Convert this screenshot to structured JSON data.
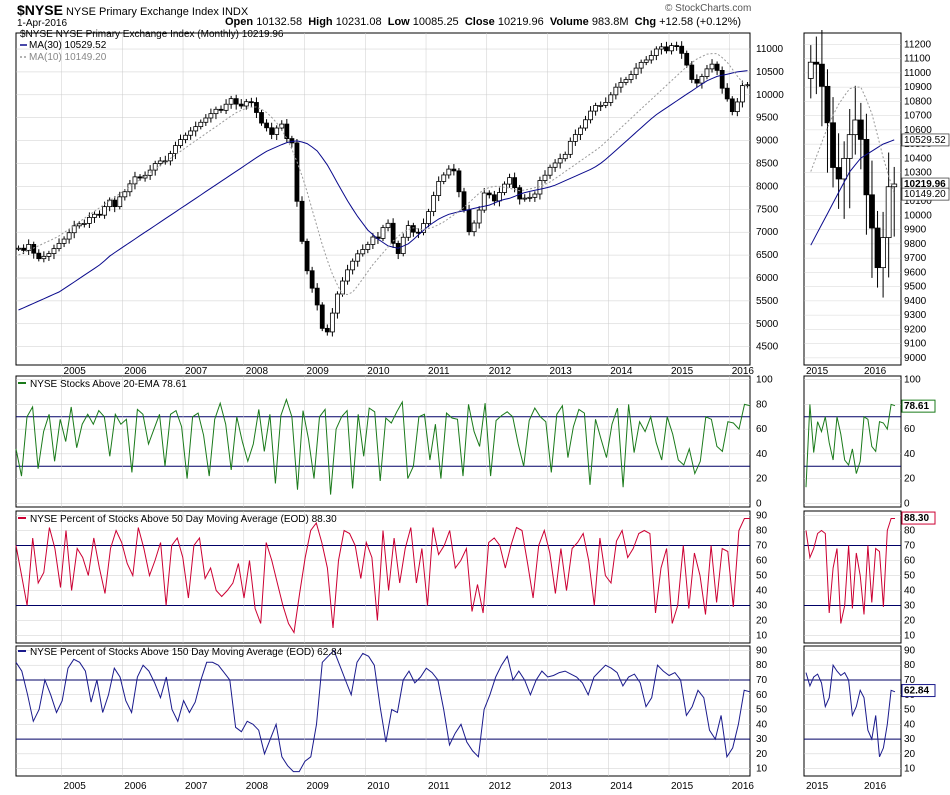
{
  "header": {
    "symbol": "$NYSE",
    "name": "NYSE Primary Exchange Index",
    "exchange": "INDX",
    "date": "1-Apr-2016",
    "open_label": "Open",
    "open": "10132.58",
    "high_label": "High",
    "high": "10231.08",
    "low_label": "Low",
    "low": "10085.25",
    "close_label": "Close",
    "close": "10219.96",
    "volume_label": "Volume",
    "volume": "983.8M",
    "chg_label": "Chg",
    "chg": "+12.58 (+0.12%)",
    "watermark": "© StockCharts.com"
  },
  "colors": {
    "price": "#000000",
    "ma30": "#0a0a8c",
    "ma10": "#9a9a9a",
    "ind1": "#1a7a1a",
    "ind2": "#cc0033",
    "ind3": "#1a1a8c",
    "grid": "#cccccc",
    "ref": "#000066"
  },
  "chart_data": [
    {
      "type": "candlestick",
      "title": "NYSE Primary Exchange Index (Monthly) 10219.96",
      "legend": [
        {
          "name": "MA(30)",
          "value": "10529.52",
          "label": "MA(30) 10529.52"
        },
        {
          "name": "MA(10)",
          "value": "10149.20",
          "label": "MA(10) 10149.20"
        }
      ],
      "start_year": 2004.25,
      "years": [
        "2005",
        "2006",
        "2007",
        "2008",
        "2009",
        "2010",
        "2011",
        "2012",
        "2013",
        "2014",
        "2015",
        "2016"
      ],
      "y_ticks": [
        4500,
        5000,
        5500,
        6000,
        6500,
        7000,
        7500,
        8000,
        8500,
        9000,
        9500,
        10000,
        10500,
        11000
      ],
      "ylim": [
        4100,
        11350
      ],
      "close_path": [
        6650,
        6600,
        6750,
        6500,
        6400,
        6500,
        6550,
        6700,
        6800,
        6900,
        7100,
        7200,
        7150,
        7300,
        7400,
        7350,
        7550,
        7700,
        7550,
        7800,
        7900,
        8100,
        8250,
        8150,
        8300,
        8400,
        8600,
        8500,
        8650,
        8850,
        9000,
        9100,
        9200,
        9300,
        9400,
        9500,
        9600,
        9700,
        9650,
        9850,
        9950,
        9700,
        9800,
        9900,
        9750,
        9400,
        9350,
        9100,
        9250,
        9400,
        9050,
        8950,
        7600,
        6700,
        6050,
        5700,
        5300,
        4700,
        4900,
        5500,
        5800,
        6100,
        6300,
        6500,
        6600,
        6700,
        6900,
        6850,
        7100,
        7200,
        6700,
        6500,
        7000,
        7200,
        6900,
        7050,
        7300,
        7600,
        8050,
        8200,
        8350,
        8450,
        7950,
        7550,
        7000,
        7200,
        7500,
        7900,
        7800,
        7650,
        7950,
        8100,
        8250,
        7750,
        7700,
        7800,
        7700,
        8100,
        8200,
        8400,
        8500,
        8600,
        8700,
        9000,
        9150,
        9300,
        9500,
        9700,
        9800,
        9750,
        9900,
        10100,
        10250,
        10300,
        10400,
        10550,
        10700,
        10750,
        10850,
        11000,
        11050,
        10950,
        11100,
        11050,
        10850,
        10550,
        10200,
        10300,
        10500,
        10650,
        10700,
        10200,
        10000,
        9600,
        9800,
        10200,
        10220
      ],
      "ma30_path": [
        5300,
        5400,
        5500,
        5600,
        5700,
        5850,
        6000,
        6150,
        6300,
        6500,
        6650,
        6800,
        6950,
        7100,
        7250,
        7400,
        7550,
        7700,
        7850,
        8000,
        8150,
        8300,
        8450,
        8600,
        8750,
        8850,
        8950,
        9000,
        8950,
        8800,
        8500,
        8100,
        7700,
        7350,
        7050,
        6850,
        6700,
        6650,
        6750,
        6950,
        7150,
        7300,
        7400,
        7450,
        7500,
        7550,
        7600,
        7700,
        7750,
        7850,
        7900,
        7950,
        8000,
        8100,
        8200,
        8300,
        8400,
        8550,
        8750,
        8950,
        9150,
        9350,
        9550,
        9700,
        9850,
        10000,
        10150,
        10300,
        10400,
        10450,
        10500,
        10530
      ],
      "ma10_path": [
        6500,
        6600,
        6700,
        6800,
        6900,
        7050,
        7200,
        7350,
        7500,
        7650,
        7800,
        7950,
        8100,
        8250,
        8400,
        8550,
        8700,
        8850,
        9000,
        9150,
        9300,
        9450,
        9600,
        9700,
        9750,
        9650,
        9450,
        9150,
        8700,
        8100,
        7350,
        6600,
        6000,
        5600,
        5700,
        6000,
        6300,
        6550,
        6800,
        7000,
        7100,
        7050,
        7100,
        7200,
        7350,
        7500,
        7700,
        7900,
        8000,
        8000,
        7950,
        7900,
        7950,
        8000,
        8100,
        8250,
        8400,
        8550,
        8700,
        8850,
        9050,
        9250,
        9450,
        9650,
        9850,
        10050,
        10250,
        10450,
        10650,
        10800,
        10900,
        10900,
        10700,
        10400,
        10150
      ]
    },
    {
      "type": "line",
      "title": "NYSE Stocks Above 20-EMA 78.61",
      "current": "78.61",
      "y_ticks": [
        0,
        20,
        40,
        60,
        80,
        100
      ],
      "ylim": [
        -3,
        103
      ],
      "ref_lines": [
        70,
        30
      ],
      "values": [
        44,
        22,
        70,
        78,
        28,
        58,
        72,
        34,
        68,
        50,
        78,
        45,
        64,
        72,
        64,
        75,
        70,
        38,
        72,
        64,
        68,
        25,
        76,
        72,
        48,
        60,
        72,
        30,
        72,
        75,
        62,
        20,
        70,
        73,
        55,
        22,
        68,
        81,
        64,
        27,
        70,
        50,
        34,
        48,
        76,
        42,
        72,
        16,
        71,
        84,
        70,
        11,
        75,
        52,
        20,
        70,
        76,
        7,
        60,
        70,
        75,
        12,
        72,
        38,
        77,
        74,
        18,
        69,
        65,
        74,
        82,
        20,
        30,
        70,
        72,
        35,
        64,
        20,
        73,
        69,
        68,
        22,
        80,
        58,
        46,
        81,
        22,
        67,
        71,
        74,
        70,
        48,
        30,
        67,
        77,
        70,
        66,
        25,
        72,
        79,
        37,
        62,
        76,
        73,
        15,
        68,
        52,
        37,
        64,
        77,
        13,
        80,
        41,
        66,
        58,
        70,
        49,
        35,
        70,
        56,
        35,
        31,
        44,
        24,
        34,
        70,
        68,
        46,
        42,
        66,
        65,
        60,
        80,
        79
      ]
    },
    {
      "type": "line",
      "title": "NYSE Percent of Stocks Above 50 Day Moving Average (EOD) 88.30",
      "current": "88.30",
      "y_ticks": [
        10,
        20,
        30,
        40,
        50,
        60,
        70,
        80,
        90
      ],
      "ylim": [
        5,
        93
      ],
      "ref_lines": [
        70,
        30
      ],
      "values": [
        70,
        50,
        30,
        75,
        45,
        52,
        82,
        68,
        42,
        80,
        40,
        68,
        62,
        50,
        75,
        55,
        38,
        68,
        80,
        72,
        58,
        50,
        82,
        68,
        50,
        60,
        72,
        30,
        70,
        75,
        62,
        35,
        70,
        75,
        48,
        55,
        40,
        36,
        40,
        45,
        58,
        35,
        60,
        28,
        18,
        72,
        60,
        45,
        30,
        18,
        12,
        38,
        62,
        80,
        85,
        72,
        55,
        15,
        60,
        80,
        78,
        70,
        48,
        72,
        62,
        20,
        80,
        40,
        75,
        45,
        68,
        82,
        45,
        68,
        30,
        82,
        64,
        70,
        80,
        55,
        60,
        68,
        26,
        44,
        25,
        72,
        75,
        70,
        55,
        70,
        82,
        80,
        58,
        35,
        70,
        80,
        65,
        38,
        68,
        40,
        68,
        72,
        78,
        60,
        30,
        75,
        50,
        45,
        73,
        80,
        62,
        68,
        78,
        80,
        78,
        25,
        55,
        68,
        18,
        30,
        70,
        28,
        65,
        50,
        24,
        70,
        32,
        68,
        66,
        29,
        80,
        88,
        88
      ]
    },
    {
      "type": "line",
      "title": "NYSE Percent of Stocks Above 150 Day Moving Average (EOD) 62.84",
      "current": "62.84",
      "y_ticks": [
        10,
        20,
        30,
        40,
        50,
        60,
        70,
        80,
        90
      ],
      "ylim": [
        5,
        93
      ],
      "ref_lines": [
        70,
        30
      ],
      "values": [
        82,
        76,
        60,
        42,
        50,
        70,
        60,
        48,
        56,
        78,
        84,
        82,
        76,
        55,
        70,
        48,
        60,
        78,
        72,
        56,
        48,
        72,
        80,
        76,
        68,
        58,
        72,
        50,
        42,
        56,
        48,
        55,
        70,
        82,
        82,
        80,
        75,
        70,
        38,
        35,
        42,
        40,
        36,
        20,
        30,
        40,
        18,
        12,
        8,
        8,
        15,
        18,
        40,
        82,
        86,
        90,
        80,
        70,
        60,
        82,
        88,
        86,
        80,
        52,
        28,
        50,
        48,
        70,
        76,
        68,
        72,
        78,
        75,
        70,
        50,
        26,
        34,
        40,
        28,
        22,
        18,
        50,
        60,
        72,
        80,
        86,
        70,
        76,
        70,
        60,
        70,
        76,
        72,
        73,
        75,
        76,
        74,
        72,
        68,
        60,
        72,
        76,
        80,
        78,
        75,
        66,
        72,
        74,
        68,
        52,
        58,
        80,
        76,
        73,
        75,
        70,
        46,
        52,
        63,
        58,
        36,
        30,
        46,
        18,
        24,
        40,
        63,
        62
      ]
    }
  ]
}
